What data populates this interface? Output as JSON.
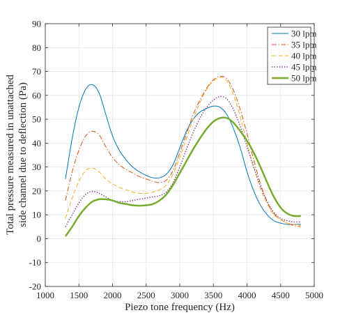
{
  "chart_data": {
    "type": "line",
    "xlabel": "Piezo tone frequency (Hz)",
    "ylabel_lines": [
      "Total pressure measured in unattached",
      "side channel due to deflection (Pa)"
    ],
    "xlim": [
      1000,
      5000
    ],
    "ylim": [
      -20,
      90
    ],
    "xticks": [
      1000,
      1500,
      2000,
      2500,
      3000,
      3500,
      4000,
      4500,
      5000
    ],
    "yticks": [
      -20,
      -10,
      0,
      10,
      20,
      30,
      40,
      50,
      60,
      70,
      80,
      90
    ],
    "grid": true,
    "legend_position": "top-right",
    "series": [
      {
        "name": "30 lpm",
        "color": "#0072bd",
        "dash": "solid",
        "width": 1,
        "points": [
          [
            1300,
            25
          ],
          [
            1400,
            42
          ],
          [
            1500,
            55
          ],
          [
            1600,
            62.5
          ],
          [
            1700,
            64.5
          ],
          [
            1800,
            61
          ],
          [
            1900,
            52
          ],
          [
            2000,
            43
          ],
          [
            2100,
            37
          ],
          [
            2200,
            33
          ],
          [
            2300,
            30
          ],
          [
            2400,
            28
          ],
          [
            2500,
            26.5
          ],
          [
            2600,
            25.5
          ],
          [
            2700,
            25.5
          ],
          [
            2800,
            27
          ],
          [
            2900,
            31
          ],
          [
            3000,
            38
          ],
          [
            3100,
            45
          ],
          [
            3200,
            50
          ],
          [
            3300,
            53
          ],
          [
            3400,
            54.5
          ],
          [
            3500,
            55.5
          ],
          [
            3600,
            55
          ],
          [
            3700,
            52
          ],
          [
            3800,
            46
          ],
          [
            3900,
            38
          ],
          [
            4000,
            28
          ],
          [
            4100,
            20
          ],
          [
            4200,
            14
          ],
          [
            4300,
            10
          ],
          [
            4400,
            7.5
          ],
          [
            4500,
            6.5
          ],
          [
            4600,
            6
          ],
          [
            4700,
            6
          ],
          [
            4800,
            6
          ]
        ]
      },
      {
        "name": "35 lpm",
        "color": "#d95319",
        "dash": "dashdot",
        "width": 1,
        "points": [
          [
            1300,
            16
          ],
          [
            1400,
            28
          ],
          [
            1500,
            37
          ],
          [
            1600,
            43
          ],
          [
            1700,
            45
          ],
          [
            1800,
            43.5
          ],
          [
            1900,
            38.5
          ],
          [
            2000,
            34
          ],
          [
            2100,
            31
          ],
          [
            2200,
            29
          ],
          [
            2300,
            27.5
          ],
          [
            2400,
            26
          ],
          [
            2500,
            25
          ],
          [
            2600,
            24
          ],
          [
            2700,
            23.5
          ],
          [
            2800,
            24.5
          ],
          [
            2900,
            28.5
          ],
          [
            3000,
            36
          ],
          [
            3100,
            44
          ],
          [
            3200,
            52
          ],
          [
            3300,
            58
          ],
          [
            3400,
            63
          ],
          [
            3500,
            66.5
          ],
          [
            3600,
            68
          ],
          [
            3700,
            67
          ],
          [
            3800,
            62
          ],
          [
            3900,
            54
          ],
          [
            4000,
            44
          ],
          [
            4100,
            33
          ],
          [
            4200,
            23
          ],
          [
            4300,
            15.5
          ],
          [
            4400,
            10.5
          ],
          [
            4500,
            8
          ],
          [
            4600,
            6.5
          ],
          [
            4700,
            5.5
          ],
          [
            4800,
            5
          ]
        ]
      },
      {
        "name": "40 lpm",
        "color": "#edb120",
        "dash": "dash",
        "width": 1,
        "points": [
          [
            1300,
            8.5
          ],
          [
            1400,
            17
          ],
          [
            1500,
            24
          ],
          [
            1600,
            28.5
          ],
          [
            1700,
            29.5
          ],
          [
            1800,
            28
          ],
          [
            1900,
            25
          ],
          [
            2000,
            23
          ],
          [
            2100,
            21.5
          ],
          [
            2200,
            20.5
          ],
          [
            2300,
            19.5
          ],
          [
            2400,
            19
          ],
          [
            2500,
            19
          ],
          [
            2600,
            19.5
          ],
          [
            2700,
            20.5
          ],
          [
            2800,
            22.5
          ],
          [
            2900,
            27
          ],
          [
            3000,
            34
          ],
          [
            3100,
            42
          ],
          [
            3200,
            50
          ],
          [
            3300,
            57
          ],
          [
            3400,
            62.5
          ],
          [
            3500,
            66
          ],
          [
            3600,
            67.5
          ],
          [
            3700,
            66
          ],
          [
            3800,
            60
          ],
          [
            3900,
            51
          ],
          [
            4000,
            40
          ],
          [
            4100,
            30
          ],
          [
            4200,
            21
          ],
          [
            4300,
            14.5
          ],
          [
            4400,
            10
          ],
          [
            4500,
            8
          ],
          [
            4600,
            6.5
          ],
          [
            4700,
            6
          ],
          [
            4800,
            5.5
          ]
        ]
      },
      {
        "name": "45 lpm",
        "color": "#7e2f8e",
        "dash": "dot",
        "width": 1.4,
        "points": [
          [
            1300,
            5
          ],
          [
            1400,
            10
          ],
          [
            1500,
            15
          ],
          [
            1600,
            18.5
          ],
          [
            1700,
            19.8
          ],
          [
            1800,
            19
          ],
          [
            1900,
            17.5
          ],
          [
            2000,
            16
          ],
          [
            2100,
            15.5
          ],
          [
            2200,
            15.5
          ],
          [
            2300,
            16
          ],
          [
            2400,
            16.5
          ],
          [
            2500,
            17
          ],
          [
            2600,
            17.5
          ],
          [
            2700,
            18
          ],
          [
            2800,
            19.5
          ],
          [
            2900,
            23.5
          ],
          [
            3000,
            30
          ],
          [
            3100,
            37.5
          ],
          [
            3200,
            44.5
          ],
          [
            3300,
            50.5
          ],
          [
            3400,
            55
          ],
          [
            3500,
            58
          ],
          [
            3600,
            59.5
          ],
          [
            3700,
            58.5
          ],
          [
            3800,
            54
          ],
          [
            3900,
            47
          ],
          [
            4000,
            38.5
          ],
          [
            4100,
            30
          ],
          [
            4200,
            22
          ],
          [
            4300,
            15.5
          ],
          [
            4400,
            11
          ],
          [
            4500,
            8.5
          ],
          [
            4600,
            7.5
          ],
          [
            4700,
            7
          ],
          [
            4800,
            7
          ]
        ]
      },
      {
        "name": "50 lpm",
        "color": "#77ac30",
        "dash": "solid",
        "width": 2.5,
        "points": [
          [
            1300,
            1
          ],
          [
            1400,
            5
          ],
          [
            1500,
            9.5
          ],
          [
            1600,
            13
          ],
          [
            1700,
            15.5
          ],
          [
            1800,
            16.5
          ],
          [
            1900,
            16.5
          ],
          [
            2000,
            16
          ],
          [
            2100,
            15
          ],
          [
            2200,
            14.5
          ],
          [
            2300,
            14
          ],
          [
            2400,
            13.8
          ],
          [
            2500,
            14
          ],
          [
            2600,
            14.5
          ],
          [
            2700,
            16
          ],
          [
            2800,
            18.5
          ],
          [
            2900,
            22.5
          ],
          [
            3000,
            27.5
          ],
          [
            3100,
            32.5
          ],
          [
            3200,
            37.5
          ],
          [
            3300,
            42
          ],
          [
            3400,
            46
          ],
          [
            3500,
            49
          ],
          [
            3600,
            50.5
          ],
          [
            3700,
            50.5
          ],
          [
            3800,
            48.5
          ],
          [
            3900,
            45
          ],
          [
            4000,
            41
          ],
          [
            4100,
            36
          ],
          [
            4200,
            30
          ],
          [
            4300,
            23.5
          ],
          [
            4400,
            17.5
          ],
          [
            4500,
            13
          ],
          [
            4600,
            10.5
          ],
          [
            4700,
            9.5
          ],
          [
            4800,
            9.5
          ]
        ]
      }
    ]
  }
}
